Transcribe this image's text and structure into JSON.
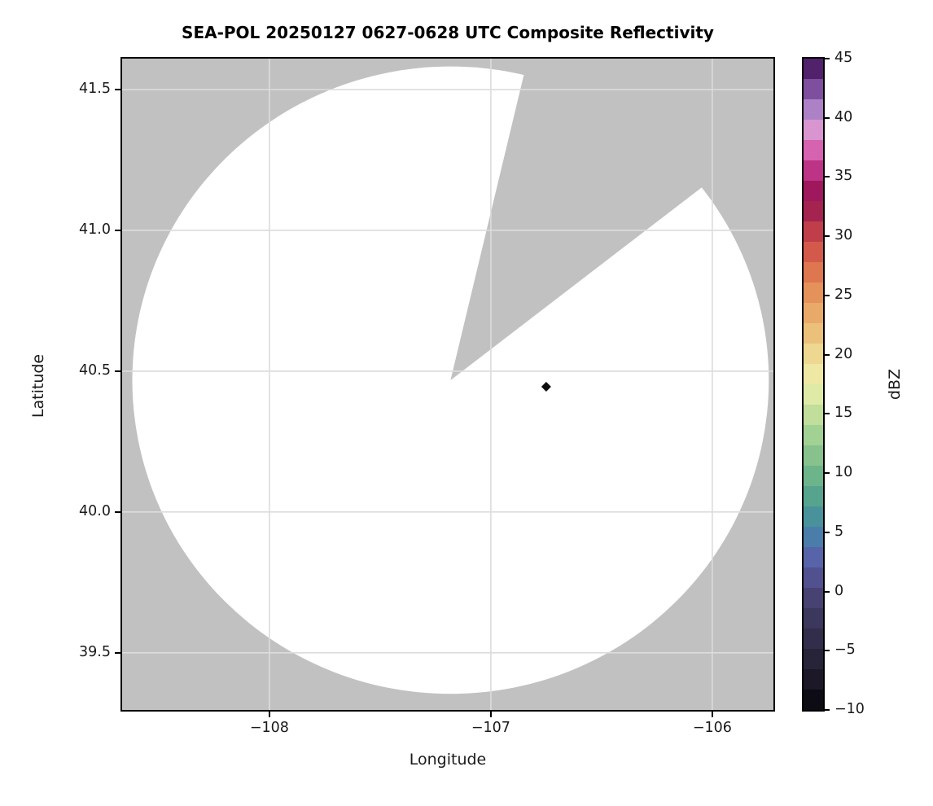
{
  "title": "SEA-POL 20250127 0627-0628 UTC Composite Reflectivity",
  "axes": {
    "xlabel": "Longitude",
    "ylabel": "Latitude",
    "x_ticks": [
      {
        "label": "−108",
        "value": -108
      },
      {
        "label": "−107",
        "value": -107
      },
      {
        "label": "−106",
        "value": -106
      }
    ],
    "y_ticks": [
      {
        "label": "41.5",
        "value": 41.5
      },
      {
        "label": "41.0",
        "value": 41.0
      },
      {
        "label": "40.5",
        "value": 40.5
      },
      {
        "label": "40.0",
        "value": 40.0
      },
      {
        "label": "39.5",
        "value": 39.5
      }
    ]
  },
  "colorbar": {
    "label": "dBZ",
    "vmin": -10,
    "vmax": 45,
    "n_bands": 32,
    "ticks": [
      {
        "label": "45",
        "value": 45
      },
      {
        "label": "40",
        "value": 40
      },
      {
        "label": "35",
        "value": 35
      },
      {
        "label": "30",
        "value": 30
      },
      {
        "label": "25",
        "value": 25
      },
      {
        "label": "20",
        "value": 20
      },
      {
        "label": "15",
        "value": 15
      },
      {
        "label": "10",
        "value": 10
      },
      {
        "label": "5",
        "value": 5
      },
      {
        "label": "0",
        "value": 0
      },
      {
        "label": "−5",
        "value": -5
      },
      {
        "label": "−10",
        "value": -10
      }
    ]
  },
  "colors": {
    "no_data_gray": "#c1c1c1",
    "echo_free_white": "#ffffff",
    "gridline": "#dcdcdc",
    "spine": "#000000",
    "marker": "#0d0d0d",
    "cmap_anchors": [
      {
        "v": -10,
        "c": "#060409"
      },
      {
        "v": -7.5,
        "c": "#1b1726"
      },
      {
        "v": -5,
        "c": "#2b2740"
      },
      {
        "v": -2.5,
        "c": "#3b3659"
      },
      {
        "v": 0,
        "c": "#4a4578"
      },
      {
        "v": 2.5,
        "c": "#5a5fa8"
      },
      {
        "v": 4,
        "c": "#4f74b0"
      },
      {
        "v": 5.5,
        "c": "#4689a4"
      },
      {
        "v": 7,
        "c": "#4b9a93"
      },
      {
        "v": 9,
        "c": "#61ad89"
      },
      {
        "v": 11,
        "c": "#7fbe8b"
      },
      {
        "v": 13,
        "c": "#9ecf93"
      },
      {
        "v": 15,
        "c": "#c2df9b"
      },
      {
        "v": 17.5,
        "c": "#f0f0ad"
      },
      {
        "v": 20,
        "c": "#eed992"
      },
      {
        "v": 22,
        "c": "#ebbd77"
      },
      {
        "v": 24,
        "c": "#e8a265"
      },
      {
        "v": 26,
        "c": "#e28653"
      },
      {
        "v": 28,
        "c": "#d9654c"
      },
      {
        "v": 30,
        "c": "#c64448"
      },
      {
        "v": 31.5,
        "c": "#b02d4e"
      },
      {
        "v": 33,
        "c": "#941550"
      },
      {
        "v": 34.5,
        "c": "#a81b67"
      },
      {
        "v": 36,
        "c": "#c63d92"
      },
      {
        "v": 37.5,
        "c": "#d96ab4"
      },
      {
        "v": 39,
        "c": "#d995cf"
      },
      {
        "v": 40.5,
        "c": "#b287c9"
      },
      {
        "v": 42,
        "c": "#8a5cab"
      },
      {
        "v": 43.5,
        "c": "#5f2d82"
      },
      {
        "v": 45,
        "c": "#41104f"
      }
    ]
  },
  "chart_data": {
    "type": "heatmap",
    "title": "SEA-POL 20250127 0627-0628 UTC Composite Reflectivity",
    "xlabel": "Longitude",
    "ylabel": "Latitude",
    "xlim": [
      -108.665,
      -105.724
    ],
    "ylim": [
      39.297,
      41.61
    ],
    "grid": true,
    "colorbar_label": "dBZ",
    "value_range_dbz": [
      -10,
      45
    ],
    "radar_coverage": {
      "description": "Circular radar scan footprint; white = scanned area with no echoes above threshold, surrounding gray = no data",
      "center_lon": -107.182,
      "center_lat": 40.468,
      "radius_deg_lon": 1.437,
      "radius_deg_lat": 1.114,
      "blocked_sector_azimuth_deg": [
        13.5,
        52.5
      ]
    },
    "points": [
      {
        "lon": -106.75,
        "lat": 40.445,
        "marker": "diamond",
        "color": "#0d0d0d",
        "description": "single dark echo pixel / site marker, approx -10 dBZ color"
      }
    ]
  }
}
